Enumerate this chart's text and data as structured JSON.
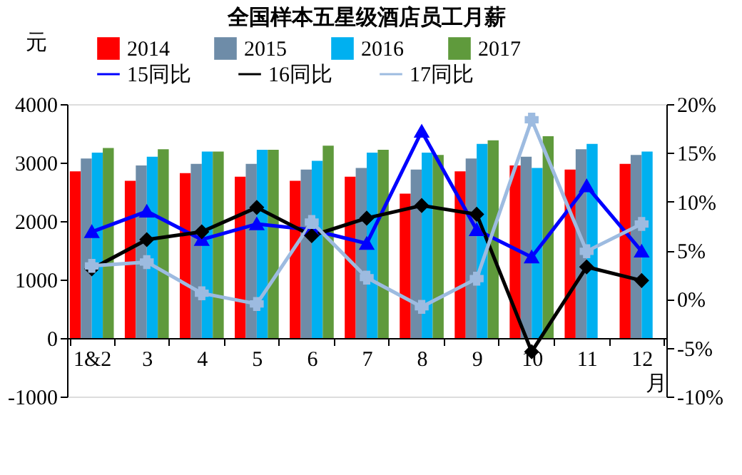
{
  "chart_data": {
    "type": "bar",
    "title": "全国样本五星级酒店员工月薪",
    "ylabel": "元",
    "xlabel": "月",
    "categories": [
      "1&2",
      "3",
      "4",
      "5",
      "6",
      "7",
      "8",
      "9",
      "10",
      "11",
      "12"
    ],
    "series": [
      {
        "name": "2014",
        "color": "#ff0000",
        "values": [
          2850,
          2690,
          2820,
          2760,
          2690,
          2760,
          2470,
          2850,
          2950,
          2880,
          2980
        ]
      },
      {
        "name": "2015",
        "color": "#6e8ca8",
        "values": [
          3070,
          2950,
          2980,
          2980,
          2880,
          2910,
          2880,
          3070,
          3100,
          3230,
          3130
        ]
      },
      {
        "name": "2016",
        "color": "#00b0f0",
        "values": [
          3170,
          3100,
          3190,
          3220,
          3030,
          3170,
          3170,
          3320,
          2910,
          3320,
          3190
        ]
      },
      {
        "name": "2017",
        "color": "#5f9a3c",
        "values": [
          3250,
          3230,
          3190,
          3220,
          3290,
          3220,
          3130,
          3380,
          3450,
          null,
          null
        ]
      },
      {
        "name": "15同比",
        "type": "line",
        "axis": "y2",
        "marker": "triangle",
        "color": "#0000ff",
        "values": [
          6.9,
          9.0,
          6.1,
          7.7,
          7.1,
          5.7,
          17.2,
          7.1,
          4.3,
          11.6,
          4.9
        ]
      },
      {
        "name": "16同比",
        "type": "line",
        "axis": "y2",
        "marker": "diamond",
        "color": "#000000",
        "values": [
          3.1,
          6.1,
          6.9,
          9.4,
          6.5,
          8.3,
          9.6,
          8.7,
          -5.4,
          3.3,
          1.9
        ]
      },
      {
        "name": "17同比",
        "type": "line",
        "axis": "y2",
        "marker": "cross",
        "color": "#9dbbe0",
        "values": [
          3.4,
          3.8,
          0.6,
          -0.5,
          7.9,
          2.2,
          -0.8,
          2.1,
          18.4,
          4.9,
          7.7
        ]
      }
    ],
    "ylim": [
      -1000,
      4000
    ],
    "yticks": [
      -1000,
      0,
      1000,
      2000,
      3000,
      4000
    ],
    "y2lim": [
      -10,
      20
    ],
    "y2ticks": [
      {
        "value": -10,
        "label": "-10%"
      },
      {
        "value": -5,
        "label": "-5%"
      },
      {
        "value": 0,
        "label": "0%"
      },
      {
        "value": 5,
        "label": "5%"
      },
      {
        "value": 10,
        "label": "10%"
      },
      {
        "value": 15,
        "label": "15%"
      },
      {
        "value": 20,
        "label": "20%"
      }
    ],
    "grid": false,
    "legend": "top",
    "line_style": "solid"
  }
}
